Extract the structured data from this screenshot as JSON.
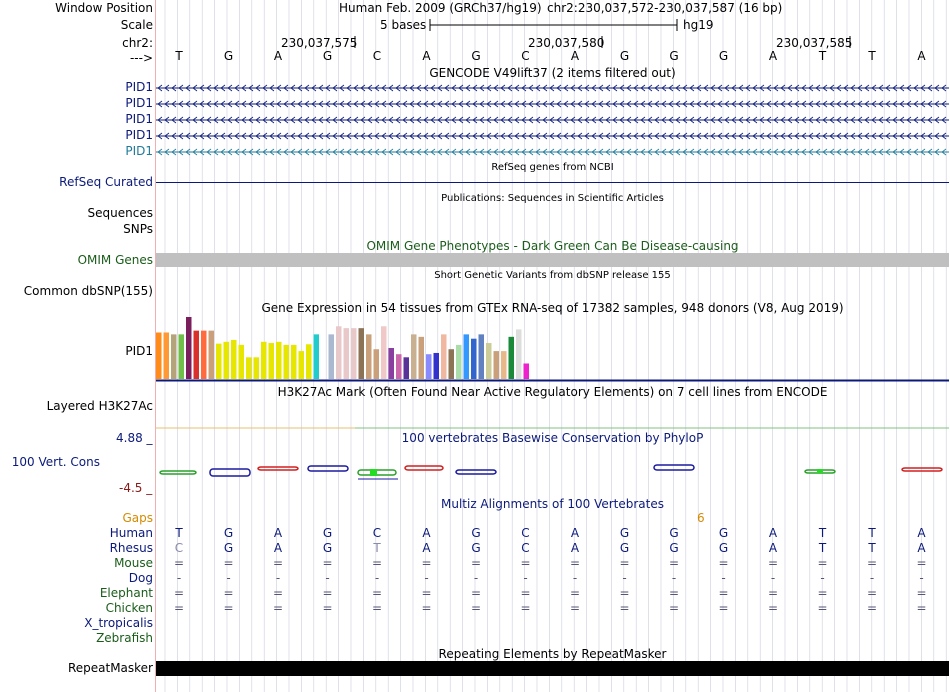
{
  "header": {
    "window_position_label": "Window Position",
    "scale_label": "Scale",
    "chr_label": "chr2:",
    "arrow_label": "--->",
    "assembly_text": "Human Feb. 2009 (GRCh37/hg19)",
    "position_text": "chr2:230,037,572-230,037,587 (16 bp)",
    "scale_text": "5 bases",
    "scale_db": "hg19",
    "ruler_ticks": [
      "230,037,575",
      "230,037,580",
      "230,037,585"
    ],
    "sequence": [
      "T",
      "G",
      "A",
      "G",
      "C",
      "A",
      "G",
      "C",
      "A",
      "G",
      "G",
      "G",
      "A",
      "T",
      "T",
      "A"
    ]
  },
  "gencode": {
    "title": "GENCODE V49lift37 (2 items filtered out)",
    "items": [
      {
        "label": "PID1",
        "color": "#0b1a7a"
      },
      {
        "label": "PID1",
        "color": "#0b1a7a"
      },
      {
        "label": "PID1",
        "color": "#0b1a7a"
      },
      {
        "label": "PID1",
        "color": "#0b1a7a"
      },
      {
        "label": "PID1",
        "color": "#1f7a9a"
      }
    ]
  },
  "refseq": {
    "title": "RefSeq genes from NCBI",
    "label": "RefSeq Curated"
  },
  "publications": {
    "title": "Publications: Sequences in Scientific Articles",
    "label1": "Sequences",
    "label2": "SNPs"
  },
  "omim": {
    "title": "OMIM Gene Phenotypes - Dark Green Can Be Disease-causing",
    "label": "OMIM Genes"
  },
  "dbsnp": {
    "title": "Short Genetic Variants from dbSNP release 155",
    "label": "Common dbSNP(155)"
  },
  "gtex": {
    "title": "Gene Expression in 54 tissues from GTEx RNA-seq of 17382 samples, 948 donors (V8, Aug 2019)",
    "label": "PID1",
    "bars": [
      {
        "v": 0.75,
        "c": "#ff8c1a"
      },
      {
        "v": 0.75,
        "c": "#ff9933"
      },
      {
        "v": 0.72,
        "c": "#b5a37a"
      },
      {
        "v": 0.72,
        "c": "#6fbf4a"
      },
      {
        "v": 1.0,
        "c": "#7a1f5c"
      },
      {
        "v": 0.78,
        "c": "#d9302c"
      },
      {
        "v": 0.78,
        "c": "#ff6b3d"
      },
      {
        "v": 0.78,
        "c": "#c9a07a"
      },
      {
        "v": 0.57,
        "c": "#e6e600"
      },
      {
        "v": 0.6,
        "c": "#e6e600"
      },
      {
        "v": 0.63,
        "c": "#e6e600"
      },
      {
        "v": 0.55,
        "c": "#e6e600"
      },
      {
        "v": 0.35,
        "c": "#e6e600"
      },
      {
        "v": 0.35,
        "c": "#e6e600"
      },
      {
        "v": 0.6,
        "c": "#e6e600"
      },
      {
        "v": 0.58,
        "c": "#e6e600"
      },
      {
        "v": 0.6,
        "c": "#e6e600"
      },
      {
        "v": 0.55,
        "c": "#e6e600"
      },
      {
        "v": 0.55,
        "c": "#e6e600"
      },
      {
        "v": 0.45,
        "c": "#e6e600"
      },
      {
        "v": 0.56,
        "c": "#e6e600"
      },
      {
        "v": 0.72,
        "c": "#22cccc"
      },
      {
        "v": 0.0,
        "c": "#ffffff"
      },
      {
        "v": 0.72,
        "c": "#aab8d0"
      },
      {
        "v": 0.85,
        "c": "#e8c8c8"
      },
      {
        "v": 0.82,
        "c": "#e8c8c8"
      },
      {
        "v": 0.82,
        "c": "#e8c8c8"
      },
      {
        "v": 0.82,
        "c": "#8c7355"
      },
      {
        "v": 0.72,
        "c": "#c9a07a"
      },
      {
        "v": 0.48,
        "c": "#c9a07a"
      },
      {
        "v": 0.85,
        "c": "#f0c8c8"
      },
      {
        "v": 0.5,
        "c": "#8a3fa0"
      },
      {
        "v": 0.4,
        "c": "#cc66aa"
      },
      {
        "v": 0.35,
        "c": "#5a3399"
      },
      {
        "v": 0.72,
        "c": "#c9b090"
      },
      {
        "v": 0.68,
        "c": "#c9a07a"
      },
      {
        "v": 0.4,
        "c": "#8a8aff"
      },
      {
        "v": 0.42,
        "c": "#3333cc"
      },
      {
        "v": 0.72,
        "c": "#f0b8a0"
      },
      {
        "v": 0.48,
        "c": "#8c7355"
      },
      {
        "v": 0.55,
        "c": "#aaddaa"
      },
      {
        "v": 0.72,
        "c": "#3399ff"
      },
      {
        "v": 0.65,
        "c": "#3366cc"
      },
      {
        "v": 0.72,
        "c": "#6080c0"
      },
      {
        "v": 0.58,
        "c": "#cccc99"
      },
      {
        "v": 0.45,
        "c": "#c9a07a"
      },
      {
        "v": 0.45,
        "c": "#e6b88a"
      },
      {
        "v": 0.68,
        "c": "#1a8a3a"
      },
      {
        "v": 0.8,
        "c": "#dddddd"
      },
      {
        "v": 0.25,
        "c": "#ee22cc"
      }
    ]
  },
  "h3k27ac": {
    "title": "H3K27Ac Mark (Often Found Near Active Regulatory Elements) on 7 cell lines from ENCODE",
    "label": "Layered H3K27Ac"
  },
  "phylop": {
    "title": "100 vertebrates Basewise Conservation by PhyloP",
    "label": "100 Vert. Cons",
    "max": "4.88 _",
    "min": "-4.5 _"
  },
  "multiz": {
    "title": "Multiz Alignments of 100 Vertebrates",
    "gaps_label": "Gaps",
    "gaps_value": "6",
    "rows": [
      {
        "label": "Human",
        "color": "#0b1a7a",
        "bases": [
          "T",
          "G",
          "A",
          "G",
          "C",
          "A",
          "G",
          "C",
          "A",
          "G",
          "G",
          "G",
          "A",
          "T",
          "T",
          "A"
        ]
      },
      {
        "label": "Rhesus",
        "color": "#0b1a7a",
        "bases": [
          "C",
          "G",
          "A",
          "G",
          "T",
          "A",
          "G",
          "C",
          "A",
          "G",
          "G",
          "G",
          "A",
          "T",
          "T",
          "A"
        ]
      },
      {
        "label": "Mouse",
        "color": "#1a5c1a",
        "bases": [
          "=",
          "=",
          "=",
          "=",
          "=",
          "=",
          "=",
          "=",
          "=",
          "=",
          "=",
          "=",
          "=",
          "=",
          "=",
          "="
        ]
      },
      {
        "label": "Dog",
        "color": "#0b1a7a",
        "bases": [
          "-",
          "-",
          "-",
          "-",
          "-",
          "-",
          "-",
          "-",
          "-",
          "-",
          "-",
          "-",
          "-",
          "-",
          "-",
          "-"
        ]
      },
      {
        "label": "Elephant",
        "color": "#1a5c1a",
        "bases": [
          "=",
          "=",
          "=",
          "=",
          "=",
          "=",
          "=",
          "=",
          "=",
          "=",
          "=",
          "=",
          "=",
          "=",
          "=",
          "="
        ]
      },
      {
        "label": "Chicken",
        "color": "#1a5c1a",
        "bases": [
          "=",
          "=",
          "=",
          "=",
          "=",
          "=",
          "=",
          "=",
          "=",
          "=",
          "=",
          "=",
          "=",
          "=",
          "=",
          "="
        ]
      },
      {
        "label": "X_tropicalis",
        "color": "#0b1a7a",
        "bases": []
      },
      {
        "label": "Zebrafish",
        "color": "#1a5c1a",
        "bases": []
      }
    ]
  },
  "repeatmasker": {
    "title": "Repeating Elements by RepeatMasker",
    "label": "RepeatMasker"
  }
}
